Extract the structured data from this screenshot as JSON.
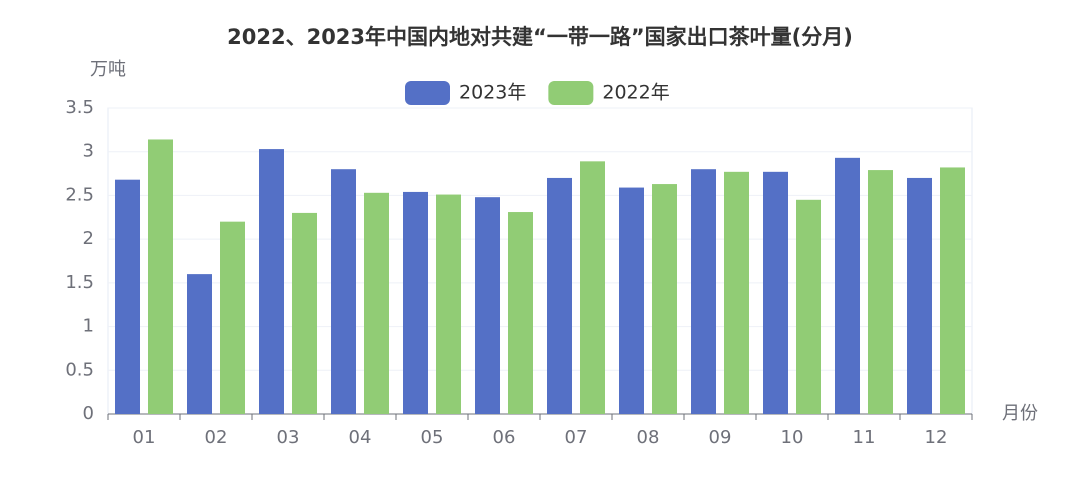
{
  "chart_data": {
    "type": "bar",
    "title": "2022、2023年中国内地对共建“一带一路”国家出口茶叶量(分月)",
    "y_label": "万吨",
    "x_label": "月份",
    "categories": [
      "01",
      "02",
      "03",
      "04",
      "05",
      "06",
      "07",
      "08",
      "09",
      "10",
      "11",
      "12"
    ],
    "series": [
      {
        "name": "2023年",
        "color": "#5470c6",
        "values": [
          2.68,
          1.6,
          3.03,
          2.8,
          2.54,
          2.48,
          2.7,
          2.59,
          2.8,
          2.77,
          2.93,
          2.7
        ]
      },
      {
        "name": "2022年",
        "color": "#91cc75",
        "values": [
          3.14,
          2.2,
          2.3,
          2.53,
          2.51,
          2.31,
          2.89,
          2.63,
          2.77,
          2.45,
          2.79,
          2.82
        ]
      }
    ],
    "ylim": [
      0,
      3.5
    ],
    "yticks": [
      0,
      0.5,
      1,
      1.5,
      2,
      2.5,
      3,
      3.5
    ],
    "grid": true
  }
}
